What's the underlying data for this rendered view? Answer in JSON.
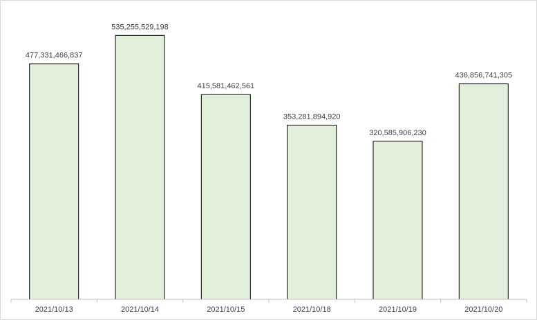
{
  "chart_data": {
    "type": "bar",
    "categories": [
      "2021/10/13",
      "2021/10/14",
      "2021/10/15",
      "2021/10/18",
      "2021/10/19",
      "2021/10/20"
    ],
    "values": [
      477331466837,
      535255529198,
      415581462561,
      353281894920,
      320585906230,
      436856741305
    ],
    "data_labels": [
      "477,331,466,837",
      "535,255,529,198",
      "415,581,462,561",
      "353,281,894,920",
      "320,585,906,230",
      "436,856,741,305"
    ],
    "title": "",
    "xlabel": "",
    "ylabel": "",
    "ylim": [
      0,
      600000000000
    ],
    "grid": false,
    "legend": "none",
    "colors": {
      "bar_fill": "#e2efda",
      "bar_stroke": "#000000",
      "axis": "#bfbfbf",
      "text": "#404040"
    }
  }
}
